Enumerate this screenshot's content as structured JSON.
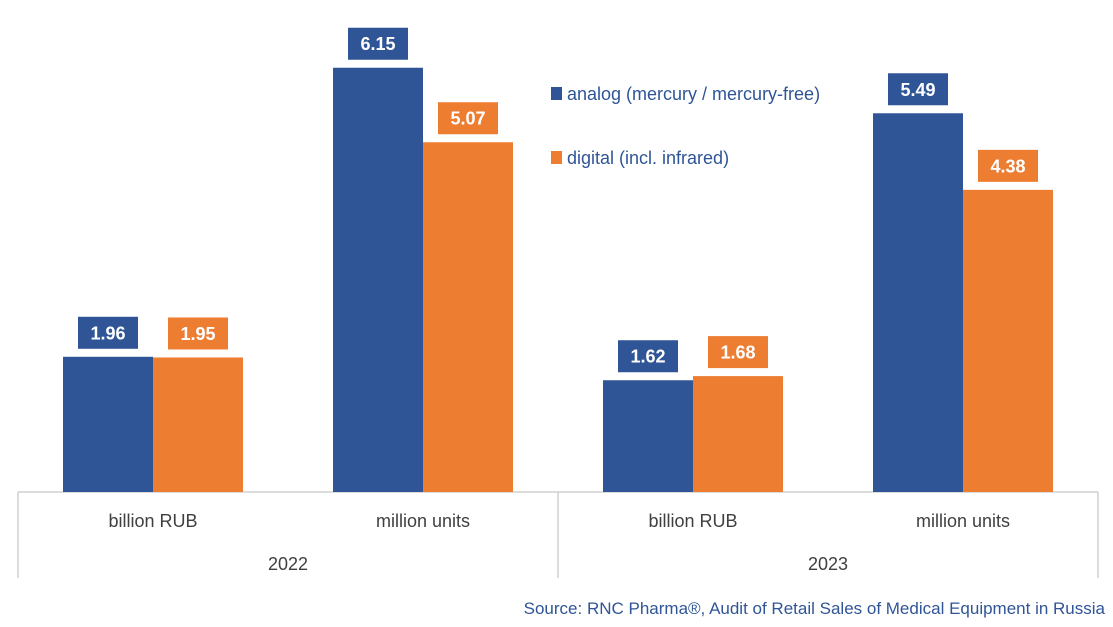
{
  "chart_data": {
    "type": "bar",
    "groups": [
      {
        "year": "2022",
        "categories": [
          "billion RUB",
          "million units"
        ]
      },
      {
        "year": "2023",
        "categories": [
          "billion RUB",
          "million units"
        ]
      }
    ],
    "series": [
      {
        "name": "analog (mercury / mercury-free)",
        "color": "#2F5597",
        "values": [
          1.96,
          6.15,
          1.62,
          5.49
        ],
        "labels": [
          "1.96",
          "6.15",
          "1.62",
          "5.49"
        ]
      },
      {
        "name": "digital (incl. infrared)",
        "color": "#ED7D31",
        "values": [
          1.95,
          5.07,
          1.68,
          4.38
        ],
        "labels": [
          "1.95",
          "5.07",
          "1.68",
          "4.38"
        ]
      }
    ],
    "ylim": [
      0,
      6.9
    ],
    "legend_position": "top-center",
    "grid": false,
    "source": "Source: RNC Pharma®, Audit of Retail Sales of Medical Equipment in Russia"
  }
}
